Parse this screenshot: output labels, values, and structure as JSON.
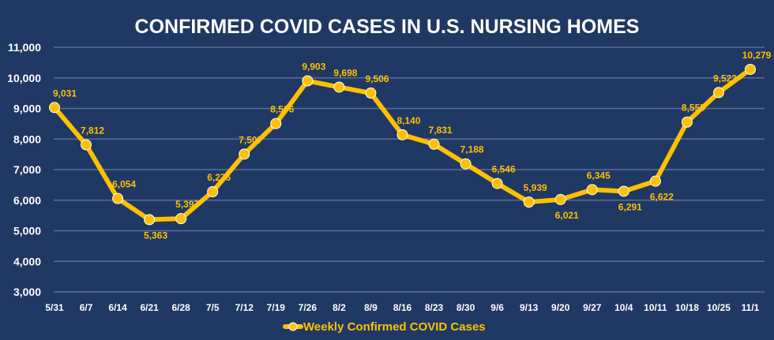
{
  "chart_data": {
    "type": "line",
    "title": "CONFIRMED COVID CASES IN U.S. NURSING HOMES",
    "xlabel": "",
    "ylabel": "",
    "ylim": [
      3000,
      11000
    ],
    "yticks": [
      3000,
      4000,
      5000,
      6000,
      7000,
      8000,
      9000,
      10000,
      11000
    ],
    "ytick_labels": [
      "3,000",
      "4,000",
      "5,000",
      "6,000",
      "7,000",
      "8,000",
      "9,000",
      "10,000",
      "11,000"
    ],
    "grid": true,
    "legend_position": "bottom",
    "categories": [
      "5/31",
      "6/7",
      "6/14",
      "6/21",
      "6/28",
      "7/5",
      "7/12",
      "7/19",
      "7/26",
      "8/2",
      "8/9",
      "8/16",
      "8/23",
      "8/30",
      "9/6",
      "9/13",
      "9/20",
      "9/27",
      "10/4",
      "10/11",
      "10/18",
      "10/25",
      "11/1"
    ],
    "series": [
      {
        "name": "Weekly Confirmed COVID Cases",
        "color": "#ffc000",
        "values": [
          9031,
          7812,
          6054,
          5363,
          5397,
          6276,
          7507,
          8506,
          9903,
          9698,
          9506,
          8140,
          7831,
          7188,
          6546,
          5939,
          6021,
          6345,
          6291,
          6622,
          8555,
          9522,
          10279
        ],
        "labels": [
          "9,031",
          "7,812",
          "6,054",
          "5,363",
          "5,397",
          "6,276",
          "7,507",
          "8,506",
          "9,903",
          "9,698",
          "9,506",
          "8,140",
          "7,831",
          "7,188",
          "6,546",
          "5,939",
          "6,021",
          "6,345",
          "6,291",
          "6,622",
          "8,555",
          "9,522",
          "10,279"
        ],
        "label_below": [
          false,
          false,
          false,
          true,
          false,
          false,
          false,
          false,
          false,
          false,
          false,
          false,
          false,
          false,
          false,
          false,
          true,
          false,
          true,
          true,
          false,
          false,
          false
        ]
      }
    ],
    "background": "#1f3864",
    "grid_color": "#5a6f96"
  }
}
